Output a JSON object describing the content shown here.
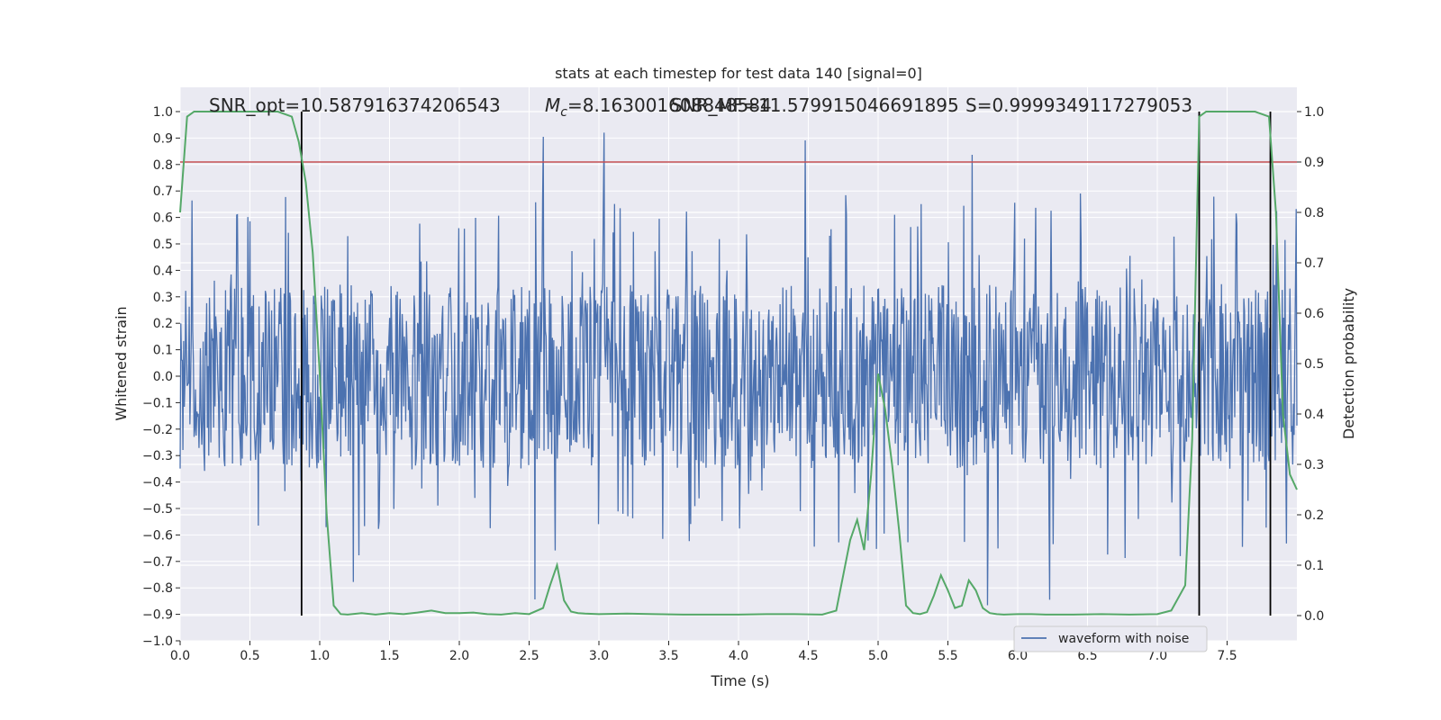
{
  "chart_data": {
    "type": "line",
    "title": "stats at each timestep for test data 140 [signal=0]",
    "xlabel": "Time (s)",
    "ylabel": "Whitened strain",
    "y2label": "Detection probability",
    "xlim": [
      0.0,
      8.0
    ],
    "ylim": [
      -1.0,
      1.0
    ],
    "y2lim": [
      -0.05,
      1.0
    ],
    "x_ticks": [
      "0.0",
      "0.5",
      "1.0",
      "1.5",
      "2.0",
      "2.5",
      "3.0",
      "3.5",
      "4.0",
      "4.5",
      "5.0",
      "5.5",
      "6.0",
      "6.5",
      "7.0",
      "7.5"
    ],
    "y_ticks": [
      "1.0",
      "0.9",
      "0.8",
      "0.7",
      "0.6",
      "0.5",
      "0.4",
      "0.3",
      "0.2",
      "0.1",
      "0.0",
      "−0.1",
      "−0.2",
      "−0.3",
      "−0.4",
      "−0.5",
      "−0.6",
      "−0.7",
      "−0.8",
      "−0.9",
      "−1.0"
    ],
    "y2_ticks": [
      "1.0",
      "0.9",
      "0.8",
      "0.7",
      "0.6",
      "0.5",
      "0.4",
      "0.3",
      "0.2",
      "0.1",
      "0.0"
    ],
    "grid": true,
    "legend_position": "lower-right",
    "annotations": {
      "snr_opt": "SNR_opt=10.587916374206543",
      "mc_symbol": "M",
      "mc_sub": "c",
      "mc_value": "=8.163001608848584",
      "snr_mf": "SNR_MF=11.579915046691895",
      "s_value": "S=0.9999349117279053"
    },
    "threshold_line": {
      "axis": "y2",
      "value": 0.9,
      "color": "#c44e52"
    },
    "vertical_lines": [
      0.87,
      7.3,
      7.81
    ],
    "series": [
      {
        "name": "waveform with noise",
        "axis": "y",
        "color": "#4c72b0",
        "kind": "noise",
        "core_amplitude": 0.35,
        "peak_max": 0.95,
        "peak_min": -0.9,
        "samples": 1600
      },
      {
        "axis": "y2",
        "color": "#55a868",
        "x": [
          0.0,
          0.05,
          0.1,
          0.2,
          0.3,
          0.4,
          0.5,
          0.6,
          0.7,
          0.8,
          0.85,
          0.9,
          0.95,
          1.0,
          1.05,
          1.1,
          1.15,
          1.2,
          1.3,
          1.4,
          1.5,
          1.6,
          1.7,
          1.8,
          1.9,
          2.0,
          2.1,
          2.2,
          2.3,
          2.4,
          2.5,
          2.6,
          2.65,
          2.7,
          2.75,
          2.8,
          2.85,
          2.9,
          3.0,
          3.2,
          3.4,
          3.6,
          3.8,
          4.0,
          4.2,
          4.4,
          4.6,
          4.7,
          4.8,
          4.85,
          4.9,
          4.95,
          5.0,
          5.05,
          5.1,
          5.15,
          5.2,
          5.25,
          5.3,
          5.35,
          5.4,
          5.45,
          5.5,
          5.55,
          5.6,
          5.65,
          5.7,
          5.75,
          5.8,
          5.85,
          5.9,
          6.0,
          6.1,
          6.2,
          6.4,
          6.6,
          6.8,
          7.0,
          7.1,
          7.2,
          7.25,
          7.3,
          7.35,
          7.4,
          7.5,
          7.6,
          7.7,
          7.8,
          7.85,
          7.9,
          7.95,
          8.0
        ],
        "y": [
          0.8,
          0.99,
          1.0,
          1.0,
          1.0,
          1.0,
          1.0,
          1.0,
          1.0,
          0.99,
          0.94,
          0.86,
          0.72,
          0.48,
          0.2,
          0.02,
          0.003,
          0.002,
          0.005,
          0.002,
          0.005,
          0.003,
          0.006,
          0.01,
          0.005,
          0.005,
          0.006,
          0.003,
          0.002,
          0.005,
          0.003,
          0.015,
          0.06,
          0.1,
          0.03,
          0.008,
          0.005,
          0.004,
          0.003,
          0.004,
          0.003,
          0.002,
          0.002,
          0.002,
          0.003,
          0.003,
          0.002,
          0.01,
          0.15,
          0.19,
          0.13,
          0.28,
          0.48,
          0.41,
          0.3,
          0.17,
          0.02,
          0.005,
          0.003,
          0.007,
          0.04,
          0.08,
          0.05,
          0.015,
          0.02,
          0.07,
          0.05,
          0.015,
          0.005,
          0.003,
          0.002,
          0.003,
          0.003,
          0.002,
          0.002,
          0.003,
          0.002,
          0.003,
          0.01,
          0.06,
          0.35,
          0.99,
          1.0,
          1.0,
          1.0,
          1.0,
          1.0,
          0.99,
          0.8,
          0.4,
          0.28,
          0.25
        ]
      }
    ]
  }
}
